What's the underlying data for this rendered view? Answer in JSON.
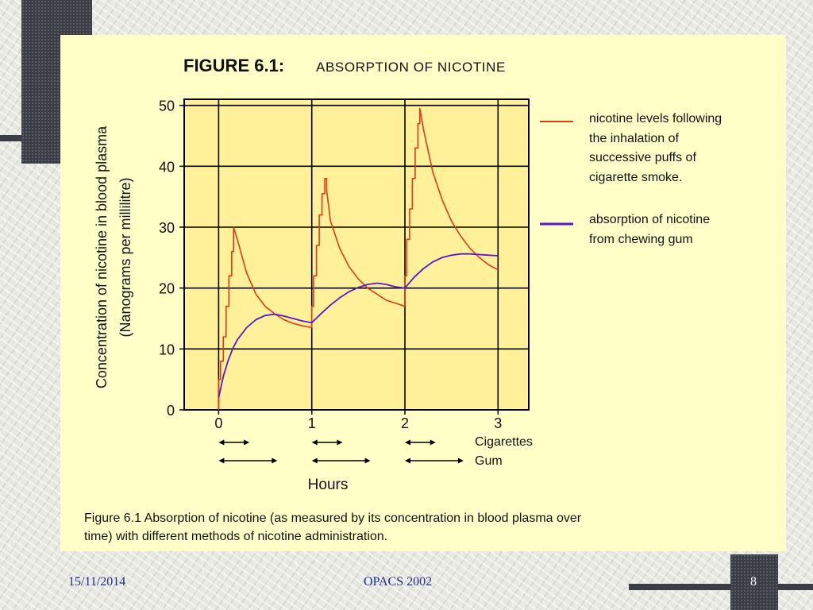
{
  "slide": {
    "figure_heading_bold": "FIGURE 6.1:",
    "figure_heading_rest": "ABSORPTION OF NICOTINE",
    "caption_line1": "Figure 6.1 Absorption of nicotine (as measured by its concentration in blood plasma over",
    "caption_line2": "time) with different methods of nicotine administration."
  },
  "footer": {
    "date": "15/11/2014",
    "center": "OPACS 2002",
    "page": "8"
  },
  "colors": {
    "cigarette_series": "#e23a14",
    "gum_series": "#5b18c9",
    "plot_background": "#fff09a"
  },
  "chart_data": {
    "type": "line",
    "title": "FIGURE 6.1: ABSORPTION OF NICOTINE",
    "xlabel": "Hours",
    "ylabel_line1": "Concentration of nicotine in blood plasma",
    "ylabel_line2": "(Nanograms per millilitre)",
    "xlim": [
      -0.37,
      3.33
    ],
    "ylim": [
      0,
      51
    ],
    "x_ticks": [
      0,
      1,
      2,
      3
    ],
    "y_ticks": [
      0,
      10,
      20,
      30,
      40,
      50
    ],
    "x_tick_labels": [
      "0",
      "1",
      "2",
      "3"
    ],
    "y_tick_labels": [
      "0",
      "10",
      "20",
      "30",
      "40",
      "50"
    ],
    "grid": true,
    "legend_placement": "right",
    "series": [
      {
        "name": "nicotine levels following the inhalation of successive puffs of cigarette smoke.",
        "legend_lines": [
          "nicotine levels following",
          "the inhalation of",
          "successive puffs of",
          "cigarette smoke."
        ],
        "color": "#e23a14",
        "x": [
          0.0,
          0.0,
          0.02,
          0.02,
          0.05,
          0.05,
          0.08,
          0.08,
          0.11,
          0.11,
          0.14,
          0.14,
          0.16,
          0.16,
          0.2,
          0.3,
          0.4,
          0.5,
          0.6,
          0.7,
          0.8,
          0.9,
          1.0,
          1.0,
          1.02,
          1.02,
          1.05,
          1.05,
          1.08,
          1.08,
          1.11,
          1.11,
          1.14,
          1.14,
          1.16,
          1.16,
          1.2,
          1.3,
          1.4,
          1.5,
          1.6,
          1.7,
          1.8,
          1.9,
          2.0,
          2.0,
          2.02,
          2.02,
          2.05,
          2.05,
          2.08,
          2.08,
          2.11,
          2.11,
          2.14,
          2.14,
          2.16,
          2.16,
          2.2,
          2.3,
          2.4,
          2.5,
          2.6,
          2.7,
          2.8,
          2.9,
          3.0
        ],
        "y": [
          0,
          5,
          5,
          8,
          8,
          12,
          12,
          17,
          17,
          22,
          22,
          26,
          26,
          30,
          28,
          22.5,
          19,
          17,
          15.8,
          14.8,
          14.2,
          13.8,
          13.5,
          17,
          17,
          22,
          22,
          27,
          27,
          32,
          32,
          35.5,
          35.5,
          38,
          38,
          36,
          31,
          26.5,
          23.5,
          21.5,
          20,
          19,
          18,
          17.5,
          17,
          22,
          22,
          28,
          28,
          33,
          33,
          38,
          38,
          43,
          43,
          47,
          47,
          49.5,
          46,
          39,
          34.5,
          31,
          28.5,
          26.5,
          25,
          23.8,
          23
        ]
      },
      {
        "name": "absorption of nicotine from chewing gum",
        "legend_lines": [
          "absorption of nicotine",
          "from chewing gum"
        ],
        "color": "#5b18c9",
        "x": [
          0.0,
          0.05,
          0.1,
          0.15,
          0.2,
          0.3,
          0.4,
          0.5,
          0.6,
          0.7,
          0.8,
          0.9,
          1.0,
          1.1,
          1.2,
          1.3,
          1.4,
          1.5,
          1.6,
          1.7,
          1.8,
          1.9,
          2.0,
          2.1,
          2.2,
          2.3,
          2.4,
          2.5,
          2.6,
          2.7,
          2.8,
          2.9,
          3.0
        ],
        "y": [
          2,
          5.5,
          8,
          10,
          11.5,
          13.5,
          14.8,
          15.5,
          15.7,
          15.4,
          15,
          14.6,
          14.3,
          15.8,
          17.2,
          18.4,
          19.4,
          20.1,
          20.6,
          20.8,
          20.6,
          20.2,
          20,
          21.8,
          23.2,
          24.3,
          25,
          25.4,
          25.6,
          25.6,
          25.5,
          25.4,
          25.3
        ]
      }
    ],
    "annotations": {
      "cigarettes_label": "Cigarettes",
      "gum_label": "Gum",
      "cigarette_intervals": [
        [
          0,
          0.33
        ],
        [
          1,
          1.33
        ],
        [
          2,
          2.33
        ]
      ],
      "gum_intervals": [
        [
          0,
          0.63
        ],
        [
          1,
          1.63
        ],
        [
          2,
          2.63
        ]
      ]
    }
  }
}
